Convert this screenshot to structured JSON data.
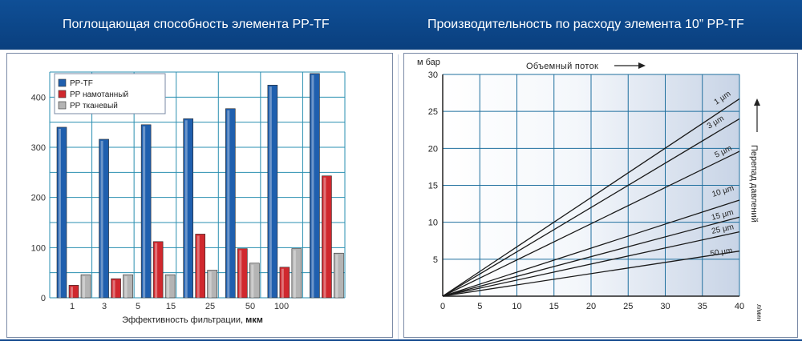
{
  "header": {
    "left_title": "Поглощающая способность элемента PP-TF",
    "right_title": "Производительность по расходу элемента 10” PP-TF"
  },
  "colors": {
    "banner": "#0f4f96",
    "blue_bar": "#1f5fae",
    "red_bar": "#d0282e",
    "gray_bar": "#b4b4b4",
    "grid": "#2a8fb0"
  },
  "chart_data": [
    {
      "type": "bar",
      "title": "Поглощающая способность элемента PP-TF",
      "xlabel_main": "Эффективность фильтрации, ",
      "xlabel_unit": "мкм",
      "categories": [
        "1",
        "3",
        "5",
        "15",
        "25",
        "50",
        "100"
      ],
      "category_labels": [
        "1",
        "3",
        "5",
        "15",
        "25",
        "50",
        "100"
      ],
      "yticks": [
        "0",
        "100",
        "200",
        "300",
        "400"
      ],
      "ylim": [
        0,
        450
      ],
      "legend_position": "top-left",
      "series": [
        {
          "name": "PP-TF",
          "color": "#1f5fae",
          "values": [
            340,
            316,
            345,
            357,
            377,
            424,
            447
          ]
        },
        {
          "name": "PP намотанный",
          "color": "#d0282e",
          "values": [
            25,
            38,
            112,
            127,
            98,
            61,
            243
          ]
        },
        {
          "name": "PP тканевый",
          "color": "#b4b4b4",
          "values": [
            46,
            46,
            46,
            55,
            69,
            98,
            89
          ]
        }
      ]
    },
    {
      "type": "line",
      "title": "Производительность по расходу элемента 10” PP-TF",
      "ylabel": "м бар",
      "xunit": "л/мин",
      "xlim": [
        0,
        40
      ],
      "ylim": [
        0,
        30
      ],
      "xticks": [
        "0",
        "5",
        "10",
        "15",
        "20",
        "25",
        "30",
        "35",
        "40"
      ],
      "yticks": [
        "5",
        "10",
        "15",
        "20",
        "25",
        "30"
      ],
      "top_annotation": "Объемный поток",
      "side_annotation": "Перепад давлений",
      "series": [
        {
          "name": "1 µm",
          "x": [
            0,
            40
          ],
          "y": [
            0,
            26.7
          ]
        },
        {
          "name": "3 µm",
          "x": [
            0,
            40
          ],
          "y": [
            0,
            24.0
          ]
        },
        {
          "name": "5 µm",
          "x": [
            0,
            40
          ],
          "y": [
            0,
            19.6
          ]
        },
        {
          "name": "10 µm",
          "x": [
            0,
            40
          ],
          "y": [
            0,
            13.0
          ]
        },
        {
          "name": "15 µm",
          "x": [
            0,
            40
          ],
          "y": [
            0,
            10.7
          ]
        },
        {
          "name": "25 µm",
          "x": [
            0,
            40
          ],
          "y": [
            0,
            8.7
          ]
        },
        {
          "name": "50 µm",
          "x": [
            0,
            40
          ],
          "y": [
            0,
            6.1
          ]
        }
      ]
    }
  ]
}
